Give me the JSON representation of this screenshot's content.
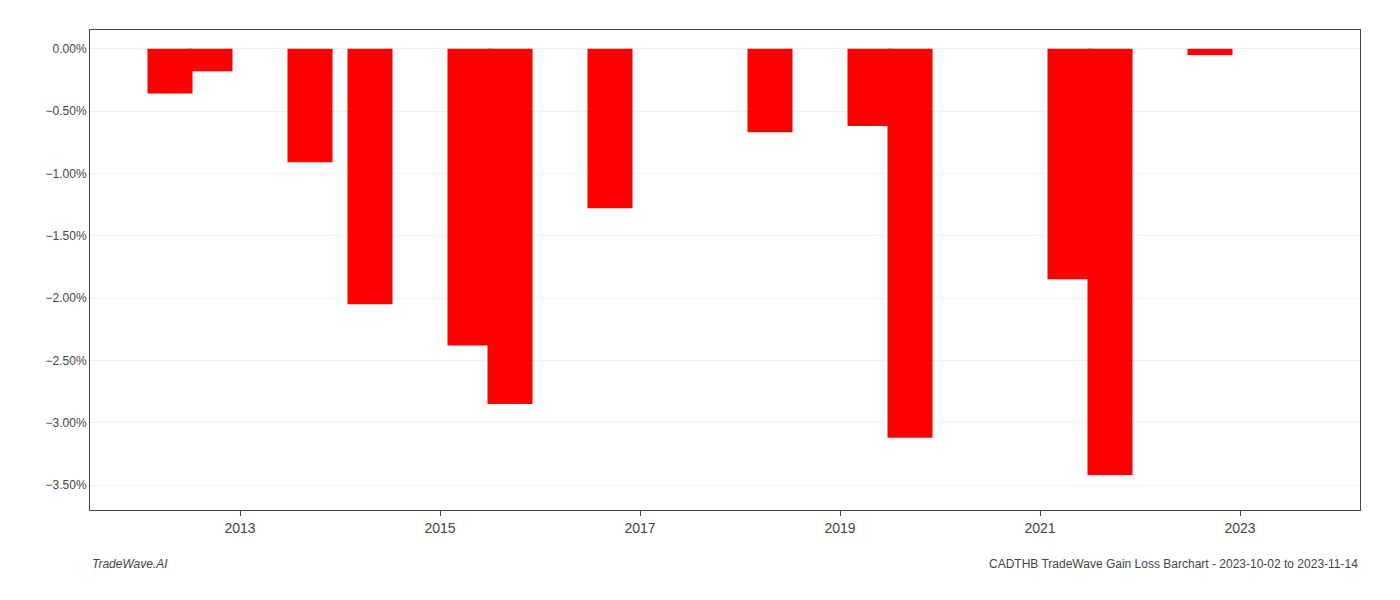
{
  "chart_data": {
    "type": "bar",
    "x": [
      2012.3,
      2012.7,
      2013.7,
      2014.3,
      2015.3,
      2015.7,
      2016.7,
      2018.3,
      2019.3,
      2019.7,
      2021.3,
      2021.7,
      2022.7
    ],
    "values": [
      -0.36,
      -0.18,
      -0.91,
      -2.05,
      -2.38,
      -2.85,
      -1.28,
      -0.67,
      -0.62,
      -3.12,
      -1.85,
      -3.42,
      -0.05
    ],
    "color": "#ff0000",
    "xlim": [
      2011.5,
      2024.2
    ],
    "xticks": [
      2013,
      2015,
      2017,
      2019,
      2021,
      2023
    ],
    "ylim": [
      -3.7,
      0.15
    ],
    "yticks": [
      {
        "value": 0.0,
        "label": "0.00%"
      },
      {
        "value": -0.5,
        "label": "−0.50%"
      },
      {
        "value": -1.0,
        "label": "−1.00%"
      },
      {
        "value": -1.5,
        "label": "−1.50%"
      },
      {
        "value": -2.0,
        "label": "−2.00%"
      },
      {
        "value": -2.5,
        "label": "−2.50%"
      },
      {
        "value": -3.0,
        "label": "−3.00%"
      },
      {
        "value": -3.5,
        "label": "−3.50%"
      }
    ],
    "grid": true,
    "annotations": [
      "TradeWave.AI",
      "CADTHB TradeWave Gain Loss Barchart - 2023-10-02 to 2023-11-14"
    ]
  }
}
